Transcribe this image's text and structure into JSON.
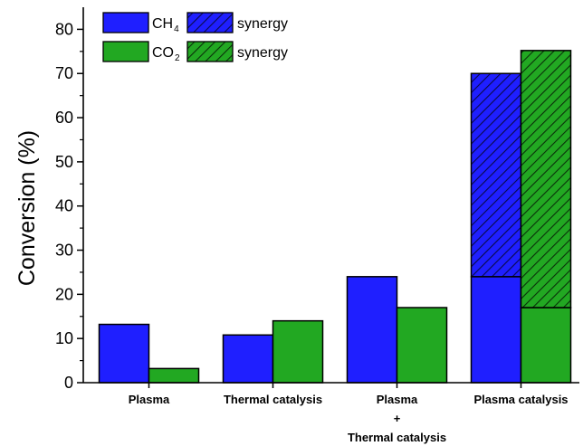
{
  "chart_data": {
    "type": "bar",
    "ylabel": "Conversion (%)",
    "xlabel": "",
    "ylim": [
      0,
      85
    ],
    "yticks": [
      0,
      10,
      20,
      30,
      40,
      50,
      60,
      70,
      80
    ],
    "categories": [
      {
        "lines": [
          "Plasma"
        ]
      },
      {
        "lines": [
          "Thermal catalysis"
        ]
      },
      {
        "lines": [
          "Plasma",
          "+",
          "Thermal catalysis"
        ]
      },
      {
        "lines": [
          "Plasma catalysis"
        ]
      }
    ],
    "series": [
      {
        "name": "CH",
        "subscript": "4",
        "color": "#1f1fff",
        "values": [
          13.2,
          10.8,
          24.0,
          24.0
        ]
      },
      {
        "name": "CO",
        "subscript": "2",
        "color": "#22a822",
        "values": [
          3.2,
          14.0,
          17.0,
          17.0
        ]
      }
    ],
    "synergy": [
      {
        "name": "synergy",
        "series_index": 0,
        "category_index": 3,
        "from": 24.0,
        "to": 70.0,
        "color": "#1f1fff"
      },
      {
        "name": "synergy",
        "series_index": 1,
        "category_index": 3,
        "from": 17.0,
        "to": 75.2,
        "color": "#22a822"
      }
    ],
    "legend_position": "top-left",
    "grid": false
  }
}
